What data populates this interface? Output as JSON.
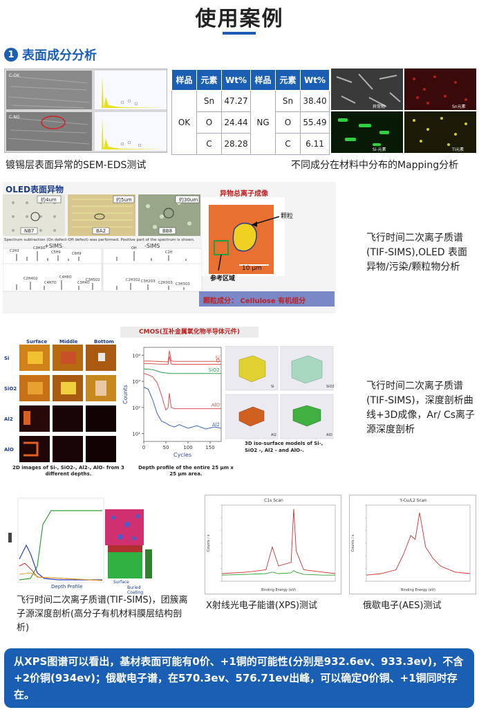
{
  "page_title": "使用案例",
  "section": {
    "number": "1",
    "title": "表面成分分析"
  },
  "sem": {
    "caption": "镀锡层表面异常的SEM-EDS测试",
    "labels": [
      "C-OK",
      "C-NG"
    ]
  },
  "composition_table": {
    "headers": [
      "样品",
      "元素",
      "Wt%",
      "样品",
      "元素",
      "Wt%"
    ],
    "ok_sample": "OK",
    "ng_sample": "NG",
    "rows": [
      {
        "el1": "Sn",
        "wt1": "47.27",
        "el2": "Sn",
        "wt2": "38.40"
      },
      {
        "el1": "O",
        "wt1": "24.44",
        "el2": "O",
        "wt2": "55.49"
      },
      {
        "el1": "C",
        "wt1": "28.28",
        "el2": "C",
        "wt2": "6.11"
      }
    ]
  },
  "mapping": {
    "caption": "不同成分在材料中分布的Mapping分析",
    "labels": [
      "异常物",
      "Sn元素",
      "Si-元素",
      "Ti元素"
    ]
  },
  "oled": {
    "title": "OLED表面异物",
    "micro_labels": [
      "约4um",
      "约5um",
      "约30um"
    ],
    "sample_labels": [
      "NB7",
      "BA2",
      "BB8"
    ],
    "spectrum_note": "Spectrum subtraction (On defect-Off defect) was performed. Positive part of the spectrum is shown.",
    "pos_label": "+SIMS",
    "neg_label": "-SIMS",
    "pos_peaks": [
      "C2H3",
      "C3H3O",
      "C5H9",
      "C6H9",
      "C2H4O2",
      "C4H7O",
      "C4H8O",
      "C3H4O",
      "C3H5O2"
    ],
    "neg_peaks": [
      "OH",
      "C2H",
      "C2H3O2",
      "C3H2O3",
      "C2H3O3",
      "C3H3O3"
    ],
    "conclusion": "颗粒成分：  Cellulose 有机组分",
    "ion_title": "异物总离子成像",
    "particle_label": "颗粒",
    "scale_label": "10 μm",
    "reference_label": "参考区域",
    "caption": "飞行时间二次离子质谱(TIF-SIMS),OLED 表面异物/污染/颗粒物分析"
  },
  "cmos": {
    "title": "CMOS(互补金属氧化物半导体元件)",
    "columns": [
      "Surface",
      "Middle",
      "Bottom"
    ],
    "rows": [
      "Si",
      "SiO2",
      "Al2",
      "AlO"
    ],
    "left_caption": "2D images of Si-, SiO2-, Al2-, AlO- from 3 different depths.",
    "chart_caption": "Depth profile of the entire 25 μm x 25 μm area.",
    "models_caption": "3D iso-surface models of Si-, SiO2 -, Al2 - and AlO-.",
    "model_tags": [
      "Si",
      "SiO2",
      "Al2",
      "AlO"
    ],
    "caption": "飞行时间二次离子质谱(TIF-SIMS)，深度剖析曲线+3D成像，Ar/ Cs离子源深度剖析"
  },
  "chart_data": [
    {
      "type": "line",
      "title": "",
      "xlabel": "Cycles",
      "ylabel": "Counts",
      "y_scale": "log",
      "ylim": [
        5,
        20000
      ],
      "xlim": [
        0,
        175
      ],
      "x_ticks": [
        "0",
        "50",
        "100",
        "150"
      ],
      "y_ticks": [
        "10⁴",
        "10³",
        "10²",
        "10¹"
      ],
      "series": [
        {
          "name": "Si",
          "color": "#e05050",
          "x": [
            0,
            10,
            30,
            50,
            55,
            58,
            62,
            70,
            100,
            140,
            175
          ],
          "y": [
            6000,
            6000,
            5800,
            5600,
            5600,
            15000,
            6000,
            5800,
            5800,
            5800,
            5800
          ]
        },
        {
          "name": "O",
          "color": "#e05050",
          "x": [
            0,
            10,
            30,
            50,
            55,
            58,
            62,
            70,
            100,
            140,
            175
          ],
          "y": [
            4800,
            4800,
            4600,
            4500,
            4500,
            9000,
            4600,
            4500,
            4500,
            4500,
            4500
          ]
        },
        {
          "name": "SiO2",
          "color": "#2aa055",
          "x": [
            0,
            20,
            30,
            40,
            60,
            80,
            100,
            140,
            175
          ],
          "y": [
            3000,
            2800,
            2500,
            2200,
            2000,
            2000,
            2000,
            2000,
            2000
          ]
        },
        {
          "name": "AlO",
          "color": "#e05050",
          "x": [
            0,
            10,
            20,
            30,
            40,
            45,
            50,
            55,
            58,
            62,
            70,
            100,
            140,
            175
          ],
          "y": [
            2000,
            1800,
            1500,
            900,
            300,
            150,
            80,
            100,
            350,
            100,
            90,
            90,
            90,
            90
          ]
        },
        {
          "name": "Al2",
          "color": "#4060c0",
          "x": [
            0,
            10,
            20,
            30,
            40,
            50,
            60,
            70,
            80,
            100,
            120,
            140,
            160,
            175
          ],
          "y": [
            600,
            500,
            200,
            60,
            30,
            25,
            20,
            18,
            22,
            16,
            20,
            15,
            18,
            16
          ]
        }
      ]
    },
    {
      "type": "line",
      "title": "C1s Scan",
      "xlabel": "Binding Energy (eV)",
      "ylabel": "Counts / s",
      "series": [
        {
          "name": "",
          "color": "#d03030",
          "x": [
            990,
            970,
            955,
            950,
            945,
            935,
            933,
            931,
            925,
            910,
            900
          ],
          "y": [
            0.1,
            0.12,
            0.15,
            0.45,
            0.2,
            0.25,
            0.95,
            0.4,
            0.15,
            0.12,
            0.1
          ]
        },
        {
          "name": "",
          "color": "#30a030",
          "x": [
            990,
            970,
            955,
            950,
            945,
            935,
            933,
            931,
            925,
            910,
            900
          ],
          "y": [
            0.08,
            0.09,
            0.1,
            0.12,
            0.1,
            0.11,
            0.14,
            0.12,
            0.09,
            0.08,
            0.08
          ]
        }
      ]
    },
    {
      "type": "line",
      "title": "Y-Cu/L2 Scan",
      "xlabel": "Binding Energy (eV)",
      "ylabel": "Counts / s",
      "series": [
        {
          "name": "",
          "color": "#d03030",
          "x": [
            540,
            550,
            560,
            565,
            570,
            573,
            576,
            580,
            585,
            590,
            600,
            610
          ],
          "y": [
            0.08,
            0.1,
            0.15,
            0.35,
            0.6,
            0.55,
            0.9,
            0.45,
            0.3,
            0.2,
            0.12,
            0.1
          ]
        }
      ]
    }
  ],
  "gcib": {
    "caption": "飞行时间二次离子质谱(TIF-SIMS)，团簇离子源深度剖析(高分子有机材料膜层结构剖析)",
    "chart_label": "Depth Profile",
    "image_labels": [
      "Surface",
      "Buried Coating"
    ]
  },
  "xps": {
    "caption": "X射线光电子能谱(XPS)测试",
    "chart_title": "C1s Scan"
  },
  "aes": {
    "caption": "俄歇电子(AES)测试",
    "chart_title": "Y-Cu/L2 Scan"
  },
  "conclusion_text": "从XPS图谱可以看出，基材表面可能有0价、+1铜的可能性(分别是932.6ev、933.3ev)，不含+2价铜(934ev)；俄歇电子谱，在570.3ev、576.71ev出峰，可以确定0价铜、+1铜同时存在。",
  "colors": {
    "brand": "#1a5fb4",
    "red": "#d03030",
    "green": "#2aa055"
  }
}
